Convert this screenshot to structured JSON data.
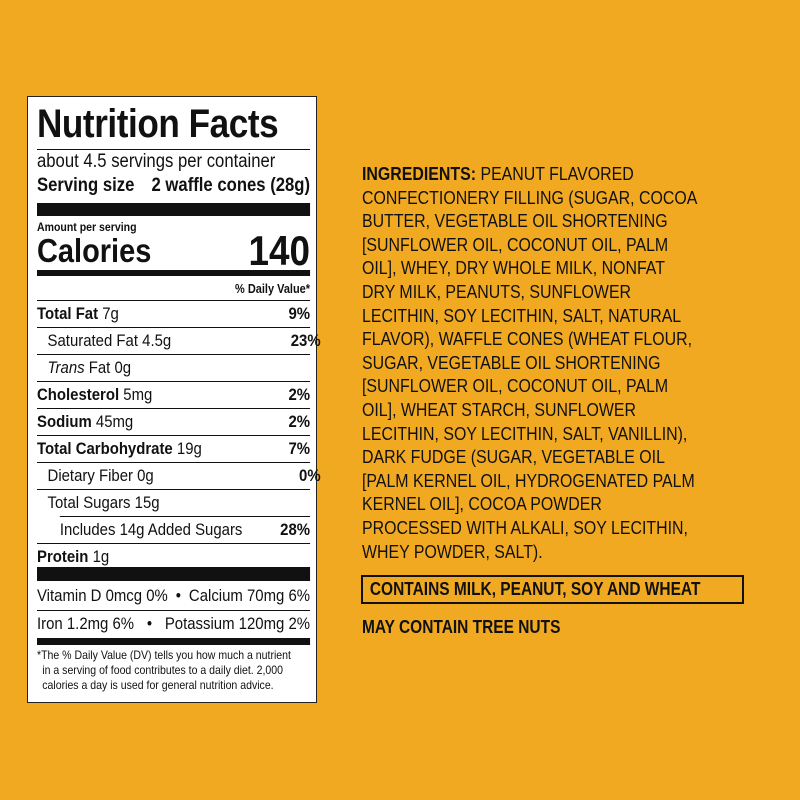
{
  "background_color": "#f2a922",
  "nutrition": {
    "title": "Nutrition Facts",
    "servings_per_container": "about 4.5 servings per container",
    "serving_size_label": "Serving size",
    "serving_size_value": "2 waffle cones (28g)",
    "amount_per_serving": "Amount per serving",
    "calories_label": "Calories",
    "calories_value": "140",
    "daily_value_header": "% Daily Value*",
    "rows": [
      {
        "name": "Total Fat",
        "amount": "7g",
        "dv": "9%"
      },
      {
        "name": "Saturated Fat",
        "amount": "4.5g",
        "dv": "23%"
      },
      {
        "name": "Trans",
        "name_suffix": "Fat",
        "amount": "0g",
        "dv": ""
      },
      {
        "name": "Cholesterol",
        "amount": "5mg",
        "dv": "2%"
      },
      {
        "name": "Sodium",
        "amount": "45mg",
        "dv": "2%"
      },
      {
        "name": "Total Carbohydrate",
        "amount": "19g",
        "dv": "7%"
      },
      {
        "name": "Dietary Fiber",
        "amount": "0g",
        "dv": "0%"
      },
      {
        "name": "Total Sugars",
        "amount": "15g",
        "dv": ""
      },
      {
        "name": "Includes 14g Added Sugars",
        "amount": "",
        "dv": "28%"
      },
      {
        "name": "Protein",
        "amount": "1g",
        "dv": ""
      }
    ],
    "micros_line1_left": "Vitamin D 0mcg 0%",
    "micros_line1_right": "Calcium 70mg 6%",
    "micros_line2_left": "Iron 1.2mg 6%",
    "micros_line2_right": "Potassium 120mg 2%",
    "bullet": "•",
    "footnote": [
      "*The % Daily Value (DV) tells you how much a nutrient",
      "in a serving of food contributes to a daily diet. 2,000",
      "calories a day is used for general nutrition advice."
    ]
  },
  "ingredients": {
    "label": "INGREDIENTS:",
    "lines": [
      " PEANUT FLAVORED",
      "CONFECTIONERY FILLING (SUGAR, COCOA",
      "BUTTER, VEGETABLE OIL SHORTENING",
      "[SUNFLOWER OIL, COCONUT OIL, PALM",
      "OIL], WHEY, DRY WHOLE MILK, NONFAT",
      "DRY MILK, PEANUTS, SUNFLOWER",
      "LECITHIN, SOY LECITHIN, SALT, NATURAL",
      "FLAVOR), WAFFLE CONES (WHEAT FLOUR,",
      "SUGAR, VEGETABLE OIL SHORTENING",
      "[SUNFLOWER OIL, COCONUT OIL, PALM",
      "OIL], WHEAT STARCH, SUNFLOWER",
      "LECITHIN, SOY LECITHIN, SALT, VANILLIN),",
      "DARK FUDGE (SUGAR, VEGETABLE OIL",
      "[PALM KERNEL OIL, HYDROGENATED PALM",
      "KERNEL OIL], COCOA POWDER",
      "PROCESSED WITH ALKALI, SOY LECITHIN,",
      "WHEY POWDER, SALT)."
    ],
    "contains": "CONTAINS MILK, PEANUT, SOY AND WHEAT",
    "may_contain": "MAY CONTAIN TREE NUTS"
  }
}
